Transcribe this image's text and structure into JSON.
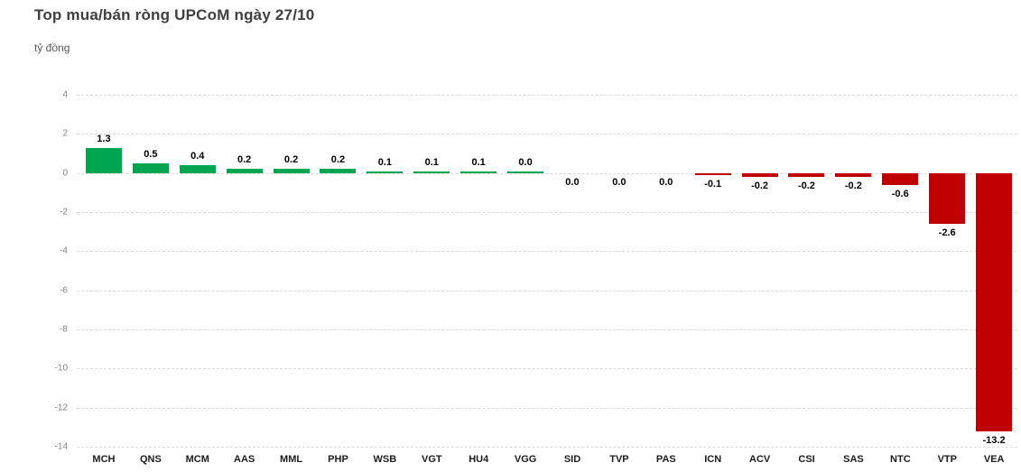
{
  "page": {
    "title": "Top mua/bán ròng UPCoM ngày 27/10",
    "unit_label": "tỷ đồng"
  },
  "chart_data": {
    "type": "bar",
    "title": "Top mua/bán ròng UPCoM ngày 27/10",
    "xlabel": "",
    "ylabel": "tỷ đồng",
    "categories": [
      "MCH",
      "QNS",
      "MCM",
      "AAS",
      "MML",
      "PHP",
      "WSB",
      "VGT",
      "HU4",
      "VGG",
      "SID",
      "TVP",
      "PAS",
      "ICN",
      "ACV",
      "CSI",
      "SAS",
      "NTC",
      "VTP",
      "VEA"
    ],
    "values": [
      1.3,
      0.5,
      0.4,
      0.2,
      0.2,
      0.2,
      0.1,
      0.1,
      0.1,
      0.0,
      0.0,
      0.0,
      0.0,
      -0.1,
      -0.2,
      -0.2,
      -0.2,
      -0.6,
      -2.6,
      -13.2
    ],
    "value_labels": [
      "1.3",
      "0.5",
      "0.4",
      "0.2",
      "0.2",
      "0.2",
      "0.1",
      "0.1",
      "0.1",
      "0.0",
      "0.0",
      "0.0",
      "0.0",
      "-0.1",
      "-0.2",
      "-0.2",
      "-0.2",
      "-0.6",
      "-2.6",
      "-13.2"
    ],
    "bar_colors": [
      "green",
      "green",
      "green",
      "green",
      "green",
      "green",
      "green",
      "green",
      "green",
      "green",
      "red",
      "red",
      "red",
      "red",
      "red",
      "red",
      "red",
      "red",
      "red",
      "red"
    ],
    "label_side": [
      "above",
      "above",
      "above",
      "above",
      "above",
      "above",
      "above",
      "above",
      "above",
      "above",
      "below",
      "below",
      "below",
      "below",
      "below",
      "below",
      "below",
      "below",
      "below",
      "below"
    ],
    "positive_color": "#00a551",
    "negative_color": "#c00000",
    "ylim": [
      -14,
      4
    ],
    "yticks": [
      4,
      2,
      0,
      -2,
      -4,
      -6,
      -8,
      -10,
      -12,
      -14
    ],
    "ytick_interval": 2,
    "grid": "horizontal-dashed",
    "legend": "none"
  }
}
